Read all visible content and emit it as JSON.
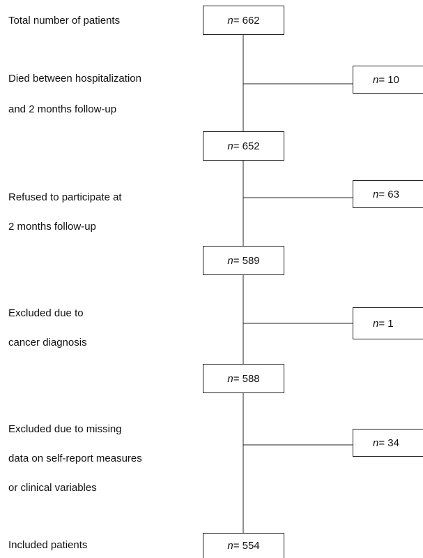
{
  "main_boxes": [
    "n = 662",
    "n = 652",
    "n = 589",
    "n = 588",
    "n = 554"
  ],
  "main_labels": [
    [
      "Total number of patients"
    ],
    [
      "Included patients"
    ]
  ],
  "exclusions": [
    {
      "label": [
        "Died between hospitalization",
        "and 2 months follow-up"
      ],
      "box": "n = 10"
    },
    {
      "label": [
        "Refused to participate at",
        "2 months follow-up"
      ],
      "box": "n = 63"
    },
    {
      "label": [
        "Excluded due to",
        "cancer diagnosis"
      ],
      "box": "n = 1"
    },
    {
      "label": [
        "Excluded due to missing",
        "data on self-report measures",
        "or clinical variables"
      ],
      "box": "n = 34"
    }
  ]
}
